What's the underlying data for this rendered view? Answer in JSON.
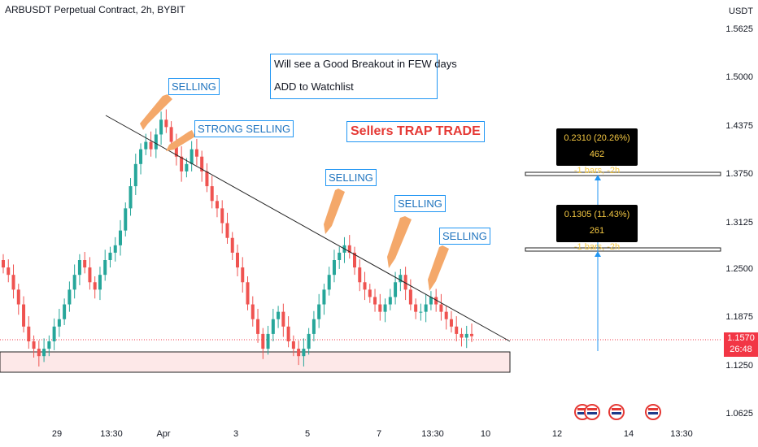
{
  "title": "ARBUSDT Perpetual Contract, 2h, BYBIT",
  "currency": "USDT",
  "price_labels": [
    "1.5625",
    "1.5000",
    "1.4375",
    "1.3750",
    "1.3125",
    "1.2500",
    "1.1875",
    "1.1250",
    "1.0625"
  ],
  "current_price": "1.1570",
  "countdown": "26:48",
  "time_labels": [
    "29",
    "13:30",
    "Apr",
    "3",
    "5",
    "7",
    "13:30",
    "10",
    "12",
    "14",
    "13:30"
  ],
  "annotations": {
    "selling": "SELLING",
    "strong_selling": "STRONG SELLING",
    "note_line1": "Will see a Good Breakout in FEW days",
    "note_line2": "ADD to Watchlist",
    "trap": "Sellers TRAP TRADE"
  },
  "measure_upper": {
    "line1": "0.2310 (20.26%) 462",
    "line2": "-1 bars, -2h"
  },
  "measure_lower": {
    "line1": "0.1305 (11.43%) 261",
    "line2": "-1 bars, -2h"
  },
  "colors": {
    "up": "#26a69a",
    "down": "#ef5350",
    "accent": "#2196f3",
    "price_tag": "#f23645",
    "annotation_arrow": "#f4a86a",
    "support_zone": "#fde8e8"
  },
  "chart_data": {
    "type": "candlestick",
    "title": "ARBUSDT Perpetual Contract, 2h, BYBIT",
    "ylabel": "USDT",
    "ylim": [
      1.04,
      1.59
    ],
    "yticks": [
      1.5625,
      1.5,
      1.4375,
      1.375,
      1.3125,
      1.25,
      1.1875,
      1.125,
      1.0625
    ],
    "xticks": [
      "29",
      "13:30",
      "Apr",
      "3",
      "5",
      "7",
      "13:30",
      "10",
      "12",
      "14",
      "13:30"
    ],
    "last_price": 1.157,
    "close_path": [
      1.25,
      1.24,
      1.22,
      1.2,
      1.17,
      1.15,
      1.14,
      1.13,
      1.14,
      1.15,
      1.17,
      1.18,
      1.2,
      1.22,
      1.24,
      1.26,
      1.25,
      1.23,
      1.22,
      1.24,
      1.26,
      1.27,
      1.28,
      1.3,
      1.33,
      1.36,
      1.39,
      1.41,
      1.42,
      1.41,
      1.43,
      1.45,
      1.44,
      1.42,
      1.4,
      1.38,
      1.39,
      1.41,
      1.4,
      1.38,
      1.36,
      1.34,
      1.33,
      1.31,
      1.29,
      1.27,
      1.25,
      1.23,
      1.2,
      1.18,
      1.16,
      1.14,
      1.16,
      1.18,
      1.19,
      1.17,
      1.15,
      1.14,
      1.13,
      1.14,
      1.16,
      1.18,
      1.2,
      1.22,
      1.24,
      1.26,
      1.27,
      1.28,
      1.27,
      1.25,
      1.23,
      1.22,
      1.21,
      1.2,
      1.19,
      1.2,
      1.21,
      1.23,
      1.24,
      1.22,
      1.2,
      1.19,
      1.19,
      1.2,
      1.21,
      1.2,
      1.19,
      1.18,
      1.17,
      1.16,
      1.155,
      1.16,
      1.157
    ],
    "trendline": [
      {
        "time": "13:30",
        "value": 1.45
      },
      {
        "time": "10",
        "value": 1.15
      }
    ],
    "support_zone": [
      1.118,
      1.142
    ],
    "measure_levels": [
      1.38,
      1.27
    ]
  }
}
